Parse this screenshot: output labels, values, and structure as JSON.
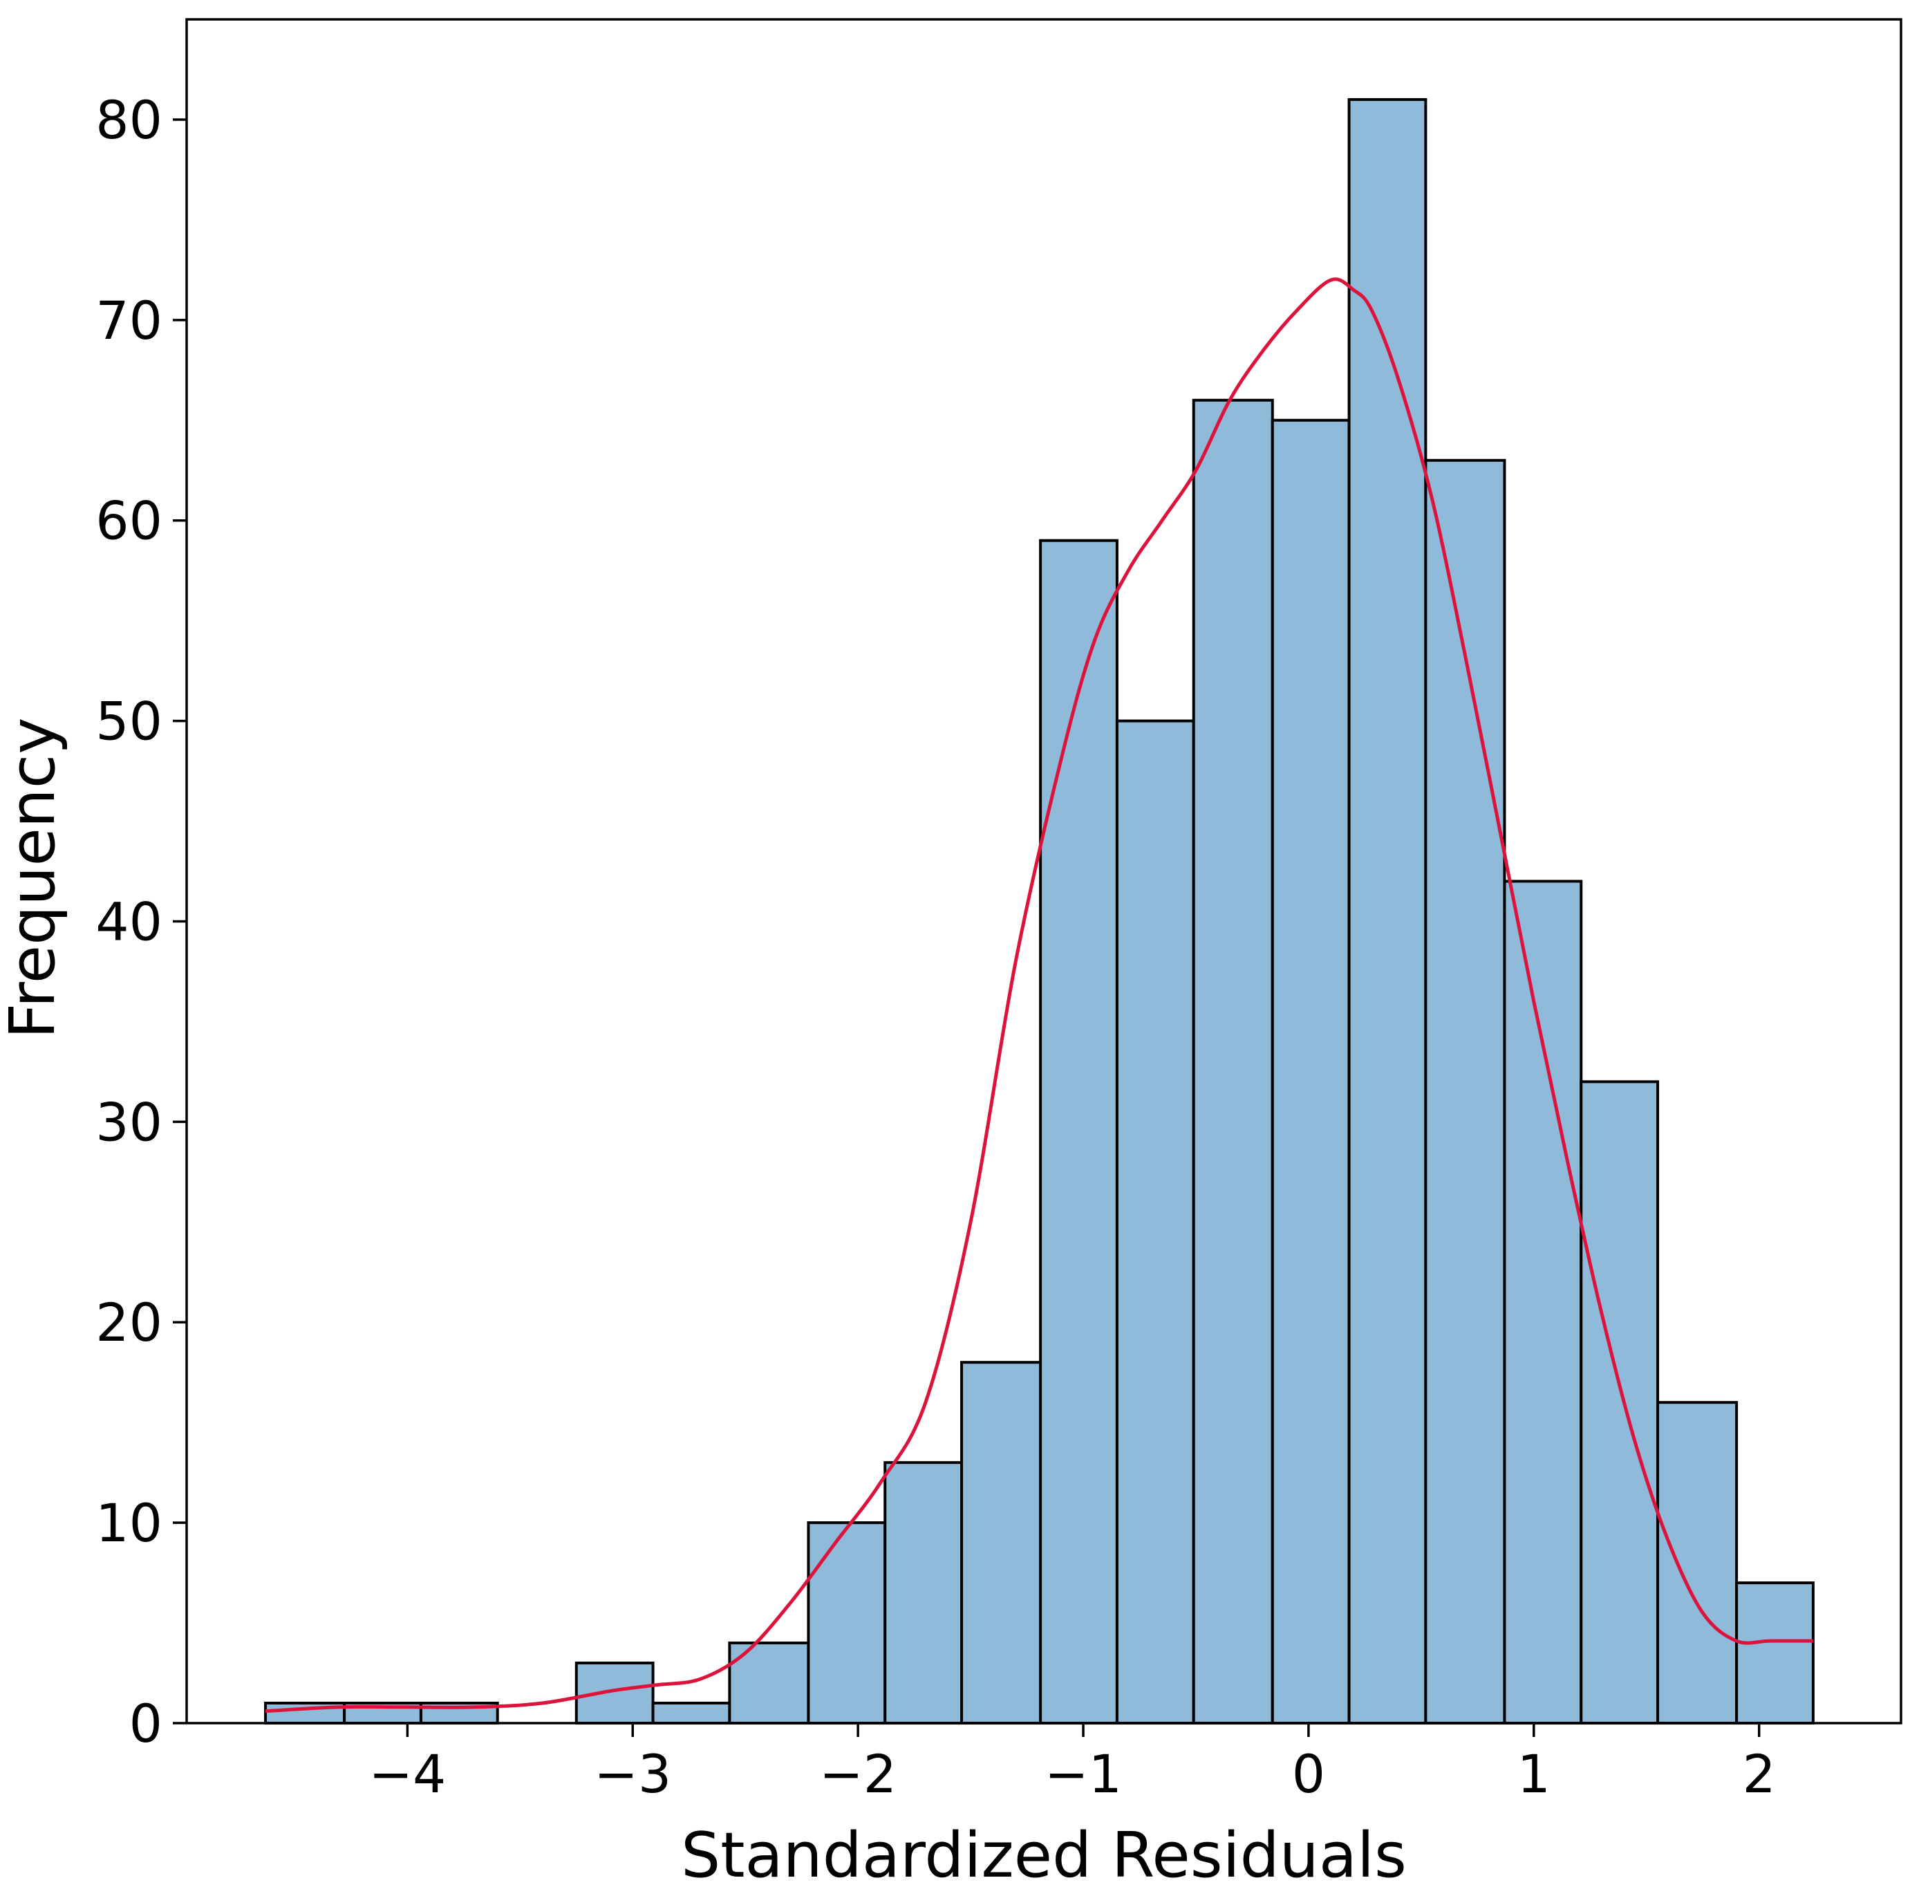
{
  "chart_data": {
    "type": "bar",
    "subtype": "histogram",
    "title": "",
    "xlabel": "Standardized Residuals",
    "ylabel": "Frequency",
    "xlim": [
      -4.98,
      2.63
    ],
    "ylim": [
      0,
      85
    ],
    "x_ticks": [
      {
        "value": -4,
        "label": "−4"
      },
      {
        "value": -3,
        "label": "−3"
      },
      {
        "value": -2,
        "label": "−2"
      },
      {
        "value": -1,
        "label": "−1"
      },
      {
        "value": 0,
        "label": "0"
      },
      {
        "value": 1,
        "label": "1"
      },
      {
        "value": 2,
        "label": "2"
      }
    ],
    "y_ticks": [
      {
        "value": 0,
        "label": "0"
      },
      {
        "value": 10,
        "label": "10"
      },
      {
        "value": 20,
        "label": "20"
      },
      {
        "value": 30,
        "label": "30"
      },
      {
        "value": 40,
        "label": "40"
      },
      {
        "value": 50,
        "label": "50"
      },
      {
        "value": 60,
        "label": "60"
      },
      {
        "value": 70,
        "label": "70"
      },
      {
        "value": 80,
        "label": "80"
      }
    ],
    "bins": [
      {
        "x0": -4.63,
        "x1": -4.28,
        "count": 1
      },
      {
        "x0": -4.28,
        "x1": -3.94,
        "count": 1
      },
      {
        "x0": -3.94,
        "x1": -3.6,
        "count": 1
      },
      {
        "x0": -3.6,
        "x1": -3.25,
        "count": 0
      },
      {
        "x0": -3.25,
        "x1": -2.91,
        "count": 3
      },
      {
        "x0": -2.91,
        "x1": -2.57,
        "count": 1
      },
      {
        "x0": -2.57,
        "x1": -2.22,
        "count": 4
      },
      {
        "x0": -2.22,
        "x1": -1.88,
        "count": 10
      },
      {
        "x0": -1.88,
        "x1": -1.54,
        "count": 13
      },
      {
        "x0": -1.54,
        "x1": -1.19,
        "count": 18
      },
      {
        "x0": -1.19,
        "x1": -0.85,
        "count": 59
      },
      {
        "x0": -0.85,
        "x1": -0.51,
        "count": 50
      },
      {
        "x0": -0.51,
        "x1": -0.16,
        "count": 66
      },
      {
        "x0": -0.16,
        "x1": 0.18,
        "count": 65
      },
      {
        "x0": 0.18,
        "x1": 0.52,
        "count": 81
      },
      {
        "x0": 0.52,
        "x1": 0.87,
        "count": 63
      },
      {
        "x0": 0.87,
        "x1": 1.21,
        "count": 42
      },
      {
        "x0": 1.21,
        "x1": 1.55,
        "count": 32
      },
      {
        "x0": 1.55,
        "x1": 1.9,
        "count": 16
      },
      {
        "x0": 1.9,
        "x1": 2.24,
        "count": 7
      }
    ],
    "kde_curve": {
      "x": [
        -4.63,
        -4.3,
        -4.0,
        -3.7,
        -3.4,
        -3.1,
        -2.9,
        -2.7,
        -2.5,
        -2.3,
        -2.1,
        -1.9,
        -1.7,
        -1.5,
        -1.3,
        -1.1,
        -0.95,
        -0.8,
        -0.65,
        -0.5,
        -0.35,
        -0.2,
        -0.05,
        0.1,
        0.2,
        0.28,
        0.4,
        0.55,
        0.7,
        0.85,
        1.0,
        1.15,
        1.3,
        1.45,
        1.6,
        1.75,
        1.9,
        2.05,
        2.24
      ],
      "y": [
        0.6,
        0.8,
        0.8,
        0.8,
        1.0,
        1.6,
        1.9,
        2.2,
        3.5,
        6.0,
        9.0,
        12.0,
        16.0,
        25.0,
        38.0,
        48.0,
        54.0,
        57.5,
        60.0,
        62.5,
        66.0,
        68.5,
        70.5,
        72.0,
        71.5,
        70.5,
        67.0,
        61.0,
        53.0,
        44.5,
        36.0,
        28.0,
        20.5,
        14.0,
        9.0,
        5.5,
        4.1,
        4.1,
        4.1
      ]
    },
    "grid": false,
    "legend": "none",
    "bar_color": "#8fbad9",
    "bar_edge_color": "#000000",
    "kde_color": "#dc143c"
  }
}
